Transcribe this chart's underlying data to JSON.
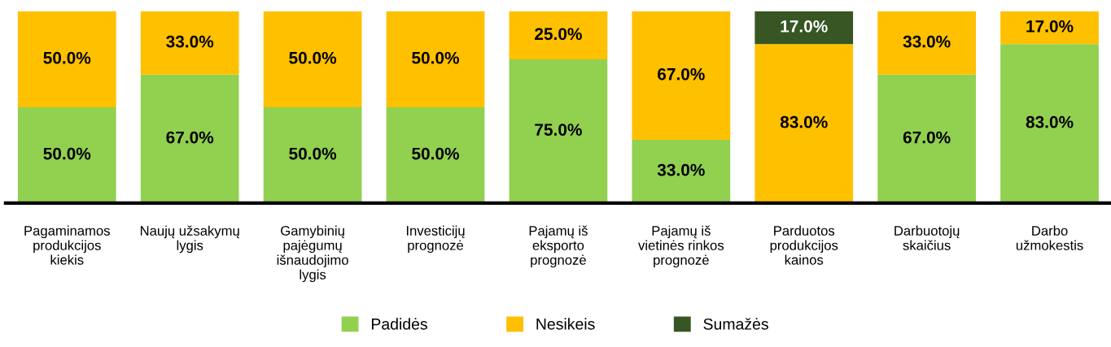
{
  "chart_data": {
    "type": "bar",
    "stacked": true,
    "ylim": [
      0,
      100
    ],
    "tick_labels": "x",
    "legend": "bottom",
    "grid": false,
    "categories": [
      "Pagaminamos\nprodukcijos\nkiekis",
      "Naujų užsakymų\nlygis",
      "Gamybinių\npajėgumų\nišnaudojimo\nlygis",
      "Investicijų\nprognozė",
      "Pajamų iš\neksporto\nprognozė",
      "Pajamų iš\nvietinės rinkos\nprognozė",
      "Parduotos\nprodukcijos\nkainos",
      "Darbuotojų\nskaičius",
      "Darbo\nužmokestis"
    ],
    "series": [
      {
        "name": "Padidės",
        "color": "#92d050",
        "values": [
          50,
          67,
          50,
          50,
          75,
          33,
          0,
          67,
          83
        ],
        "value_labels": [
          "50.0%",
          "67.0%",
          "50.0%",
          "50.0%",
          "75.0%",
          "33.0%",
          null,
          "67.0%",
          "83.0%"
        ]
      },
      {
        "name": "Nesikeis",
        "color": "#ffc000",
        "values": [
          50,
          33,
          50,
          50,
          25,
          67,
          83,
          33,
          17
        ],
        "value_labels": [
          "50.0%",
          "33.0%",
          "50.0%",
          "50.0%",
          "25.0%",
          "67.0%",
          "83.0%",
          "33.0%",
          "17.0%"
        ]
      },
      {
        "name": "Sumažės",
        "color": "#375623",
        "values": [
          null,
          null,
          null,
          null,
          null,
          null,
          17,
          null,
          null
        ],
        "value_labels": [
          null,
          null,
          null,
          null,
          null,
          null,
          "17.0%",
          null,
          null
        ]
      }
    ]
  }
}
